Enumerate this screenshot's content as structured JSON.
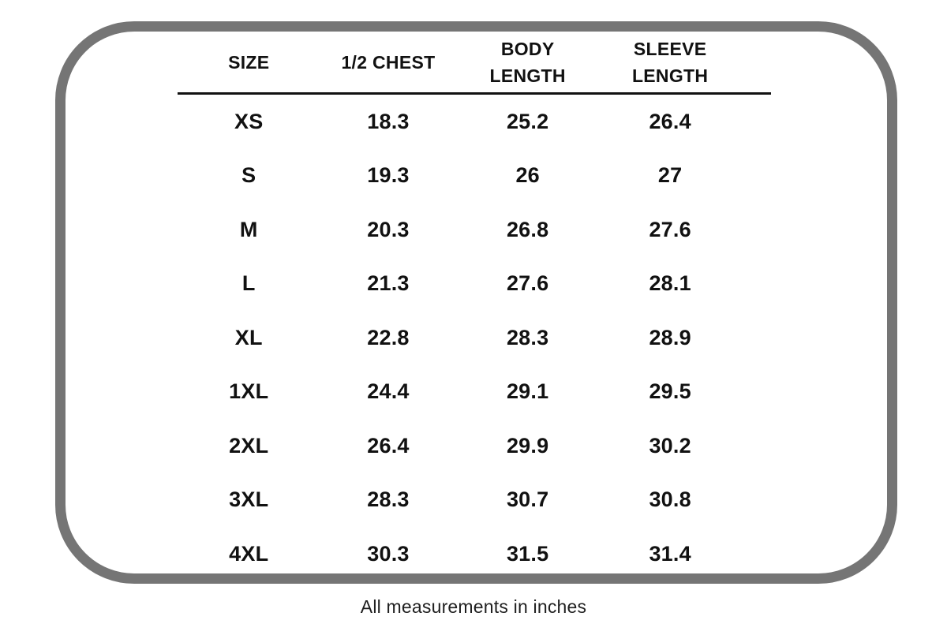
{
  "table": {
    "columns": [
      "SIZE",
      "1/2 CHEST",
      "BODY\nLENGTH",
      "SLEEVE\nLENGTH"
    ],
    "rows": [
      [
        "XS",
        "18.3",
        "25.2",
        "26.4"
      ],
      [
        "S",
        "19.3",
        "26",
        "27"
      ],
      [
        "M",
        "20.3",
        "26.8",
        "27.6"
      ],
      [
        "L",
        "21.3",
        "27.6",
        "28.1"
      ],
      [
        "XL",
        "22.8",
        "28.3",
        "28.9"
      ],
      [
        "1XL",
        "24.4",
        "29.1",
        "29.5"
      ],
      [
        "2XL",
        "26.4",
        "29.9",
        "30.2"
      ],
      [
        "3XL",
        "28.3",
        "30.7",
        "30.8"
      ],
      [
        "4XL",
        "30.3",
        "31.5",
        "31.4"
      ]
    ]
  },
  "footer": {
    "note": "All measurements in inches"
  },
  "colors": {
    "frame_border": "#757575",
    "divider": "#111111",
    "text": "#111111",
    "background": "#ffffff"
  },
  "chart_data": {
    "type": "table",
    "title": "",
    "columns": [
      "SIZE",
      "1/2 CHEST",
      "BODY LENGTH",
      "SLEEVE LENGTH"
    ],
    "rows": [
      [
        "XS",
        18.3,
        25.2,
        26.4
      ],
      [
        "S",
        19.3,
        26,
        27
      ],
      [
        "M",
        20.3,
        26.8,
        27.6
      ],
      [
        "L",
        21.3,
        27.6,
        28.1
      ],
      [
        "XL",
        22.8,
        28.3,
        28.9
      ],
      [
        "1XL",
        24.4,
        29.1,
        29.5
      ],
      [
        "2XL",
        26.4,
        29.9,
        30.2
      ],
      [
        "3XL",
        28.3,
        30.7,
        30.8
      ],
      [
        "4XL",
        30.3,
        31.5,
        31.4
      ]
    ],
    "units": "inches",
    "footnote": "All measurements in inches"
  }
}
